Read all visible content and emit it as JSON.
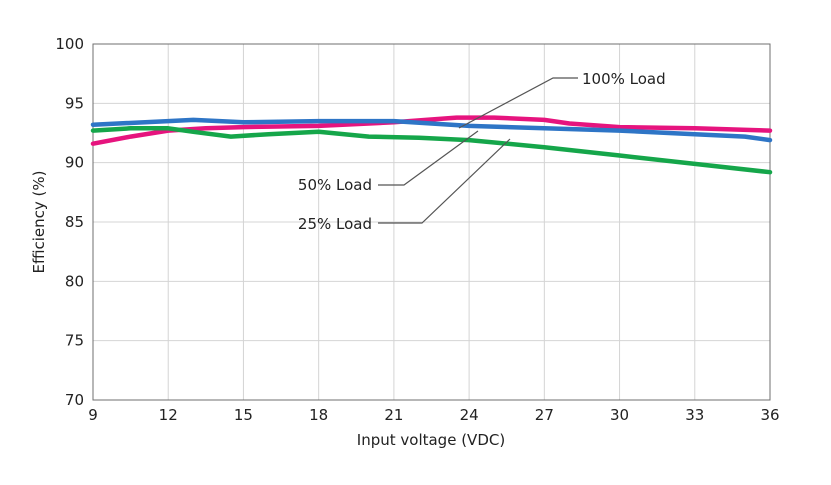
{
  "chart_data": {
    "type": "line",
    "title": "",
    "xlabel": "Input voltage (VDC)",
    "ylabel": "Efficiency (%)",
    "xlim": [
      9,
      36
    ],
    "ylim": [
      70,
      100
    ],
    "xticks": [
      "9",
      "12",
      "15",
      "18",
      "21",
      "24",
      "27",
      "30",
      "33",
      "36"
    ],
    "yticks": [
      "70",
      "75",
      "80",
      "85",
      "90",
      "95",
      "100"
    ],
    "grid": true,
    "series": [
      {
        "name": "100% Load",
        "color": "#e6147e",
        "x": [
          9,
          10.5,
          12,
          13.5,
          15,
          18,
          21,
          23.5,
          25,
          27,
          28,
          30,
          33,
          36
        ],
        "y": [
          91.6,
          92.2,
          92.7,
          92.9,
          93.0,
          93.1,
          93.4,
          93.8,
          93.8,
          93.6,
          93.3,
          93.0,
          92.9,
          92.7
        ]
      },
      {
        "name": "50% Load",
        "color": "#2e75c6",
        "x": [
          9,
          12,
          13,
          15,
          18,
          21,
          24,
          27,
          30,
          33,
          35,
          36
        ],
        "y": [
          93.2,
          93.5,
          93.6,
          93.4,
          93.5,
          93.5,
          93.1,
          92.9,
          92.7,
          92.4,
          92.2,
          91.9
        ]
      },
      {
        "name": "25% Load",
        "color": "#15a64a",
        "x": [
          9,
          10.5,
          12,
          13,
          14.5,
          16,
          18,
          20,
          22,
          24,
          27,
          30,
          33,
          36
        ],
        "y": [
          92.7,
          92.9,
          92.9,
          92.6,
          92.2,
          92.4,
          92.6,
          92.2,
          92.1,
          91.9,
          91.3,
          90.6,
          89.9,
          89.2
        ]
      }
    ],
    "annotations": [
      {
        "text": "100% Load",
        "series": "100% Load",
        "at_x": 22.5,
        "at_y": 93.4
      },
      {
        "text": "50% Load",
        "series": "50% Load",
        "at_x": 23.3,
        "at_y": 93.2
      },
      {
        "text": "25% Load",
        "series": "25% Load",
        "at_x": 24.8,
        "at_y": 91.7
      }
    ]
  }
}
